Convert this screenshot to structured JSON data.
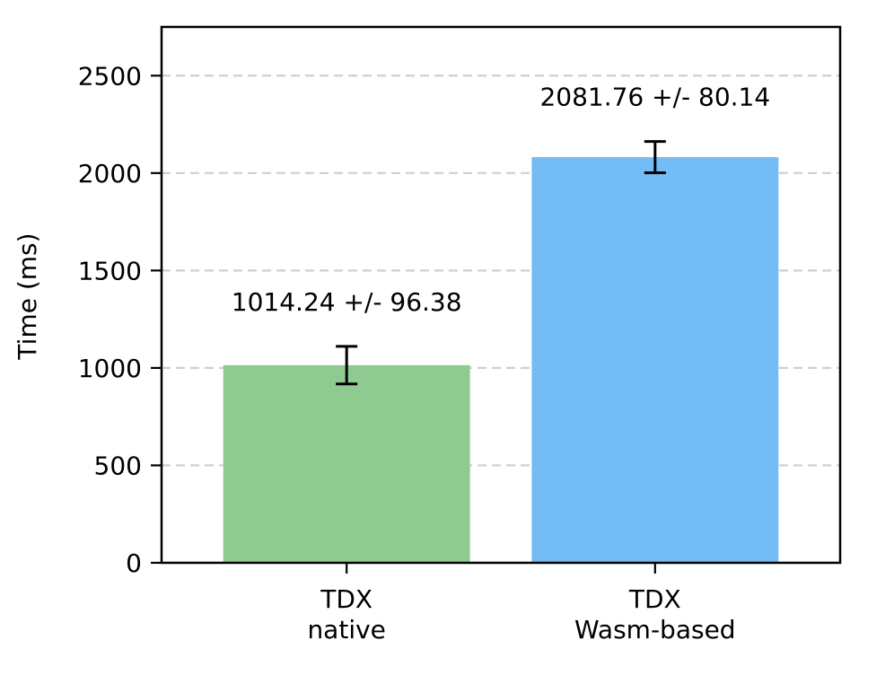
{
  "chart_data": {
    "type": "bar",
    "ylabel": "Time (ms)",
    "ylim": [
      0,
      2750
    ],
    "yticks": [
      0,
      500,
      1000,
      1500,
      2000,
      2500
    ],
    "grid": "horizontal-dashed",
    "categories": [
      [
        "TDX",
        "native"
      ],
      [
        "TDX",
        "Wasm-based"
      ]
    ],
    "values": [
      1014.24,
      2081.76
    ],
    "errors": [
      96.38,
      80.14
    ],
    "annotations": [
      "1014.24 +/- 96.38",
      "2081.76 +/- 80.14"
    ],
    "colors": [
      "#8fcb91",
      "#74bcf5"
    ]
  }
}
